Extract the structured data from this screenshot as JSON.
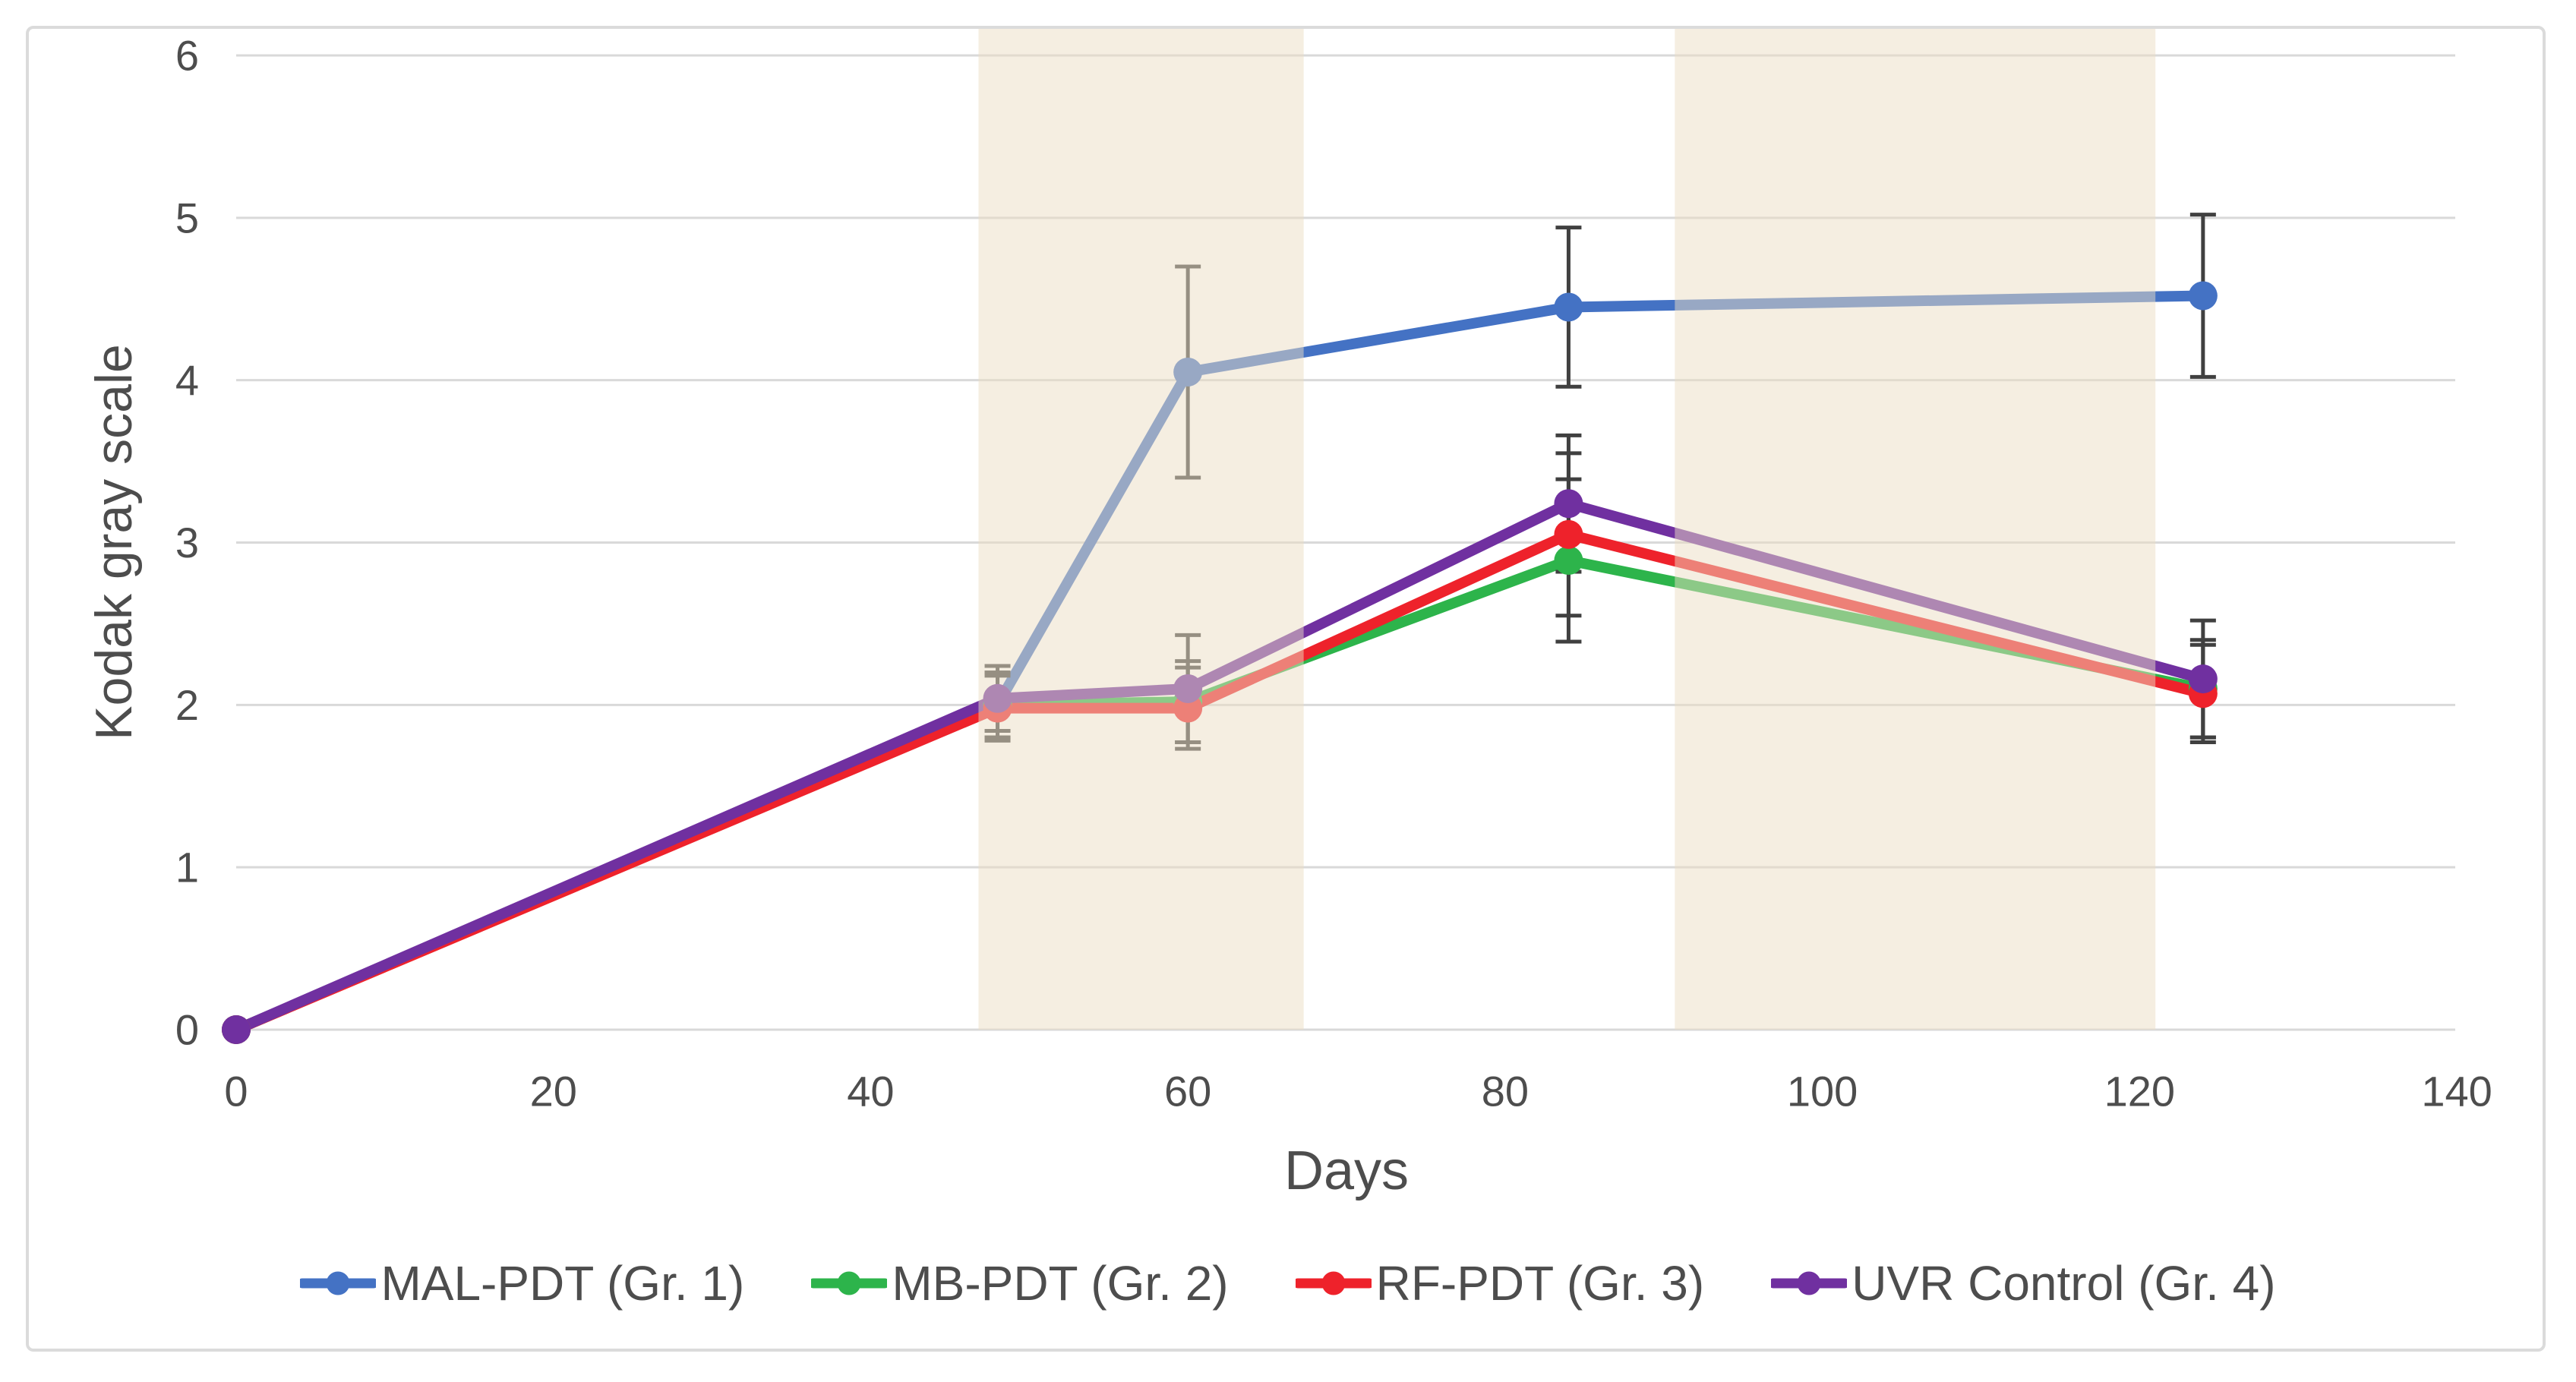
{
  "figure": {
    "background": "#FFFFFF",
    "border_color": "#DBDBDB"
  },
  "chart_data": {
    "type": "line",
    "title": "",
    "xlabel": "Days",
    "ylabel": "Kodak gray scale",
    "xlim": [
      0,
      140
    ],
    "ylim": [
      0,
      6
    ],
    "xticks": [
      0,
      20,
      40,
      60,
      80,
      100,
      120,
      140
    ],
    "yticks": [
      0,
      1,
      2,
      3,
      4,
      5,
      6
    ],
    "grid": "horizontal",
    "gridline_color": "#D9D9D9",
    "legend_position": "bottom",
    "errorbar_color": "#404040",
    "band_color": "#EBDEC3",
    "band_opacity": 0.5,
    "shaded_bands": [
      {
        "x_start": 46.8,
        "x_end": 67.3
      },
      {
        "x_start": 90.7,
        "x_end": 121.0
      }
    ],
    "x": [
      0,
      48,
      60,
      84,
      124
    ],
    "series": [
      {
        "name": "MAL-PDT (Gr. 1)",
        "color": "#4472C4",
        "values": [
          0,
          2.0,
          4.05,
          4.45,
          4.52
        ],
        "yerr": [
          0,
          0.2,
          0.65,
          0.49,
          0.5
        ]
      },
      {
        "name": "MB-PDT (Gr. 2)",
        "color": "#2DB44B",
        "values": [
          0,
          2.0,
          2.02,
          2.89,
          2.1
        ],
        "yerr": [
          0,
          0.2,
          0.25,
          0.5,
          0.3
        ]
      },
      {
        "name": "RF-PDT (Gr. 3)",
        "color": "#EE222B",
        "values": [
          0,
          1.98,
          1.98,
          3.05,
          2.07
        ],
        "yerr": [
          0,
          0.2,
          0.25,
          0.5,
          0.3
        ]
      },
      {
        "name": "UVR Control (Gr. 4)",
        "color": "#7030A0",
        "values": [
          0,
          2.04,
          2.1,
          3.24,
          2.16
        ],
        "yerr": [
          0,
          0.2,
          0.33,
          0.42,
          0.36
        ]
      }
    ]
  }
}
